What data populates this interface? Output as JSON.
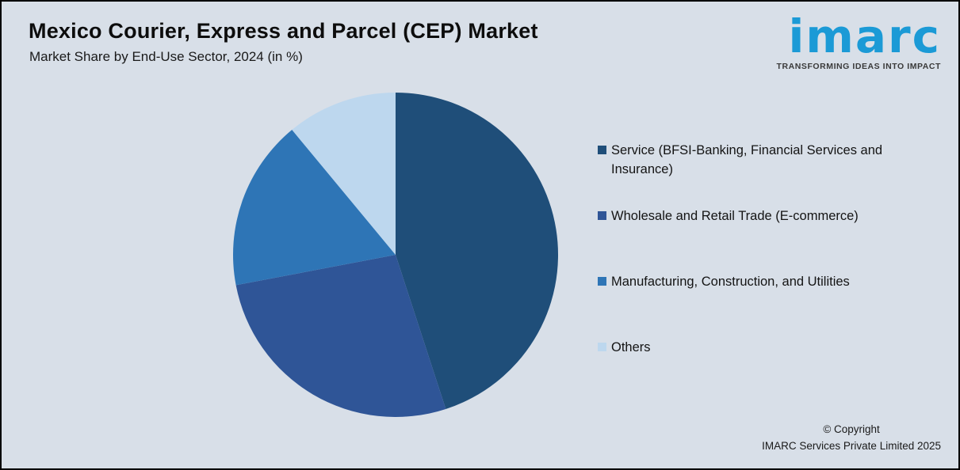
{
  "header": {
    "title": "Mexico Courier, Express and Parcel (CEP) Market",
    "subtitle": "Market Share by End-Use Sector, 2024 (in %)"
  },
  "logo": {
    "brand": "imarc",
    "tagline": "TRANSFORMING IDEAS INTO IMPACT",
    "brand_color": "#1b9ad6"
  },
  "footer": {
    "copyright_line1": "© Copyright",
    "copyright_line2": "IMARC Services Private Limited 2025"
  },
  "chart_data": {
    "type": "pie",
    "title": "Mexico Courier, Express and Parcel (CEP) Market",
    "subtitle": "Market Share by End-Use Sector, 2024 (in %)",
    "start_angle_deg": 0,
    "direction": "clockwise",
    "legend_position": "right",
    "background_color": "#d8dfe8",
    "segments": [
      {
        "label": "Service (BFSI-Banking, Financial Services and Insurance)",
        "value": 45,
        "color": "#1f4e79"
      },
      {
        "label": "Wholesale and Retail Trade (E-commerce)",
        "value": 27,
        "color": "#2f5597"
      },
      {
        "label": "Manufacturing, Construction, and Utilities",
        "value": 17,
        "color": "#2e75b6"
      },
      {
        "label": "Others",
        "value": 11,
        "color": "#bdd7ee"
      }
    ]
  }
}
